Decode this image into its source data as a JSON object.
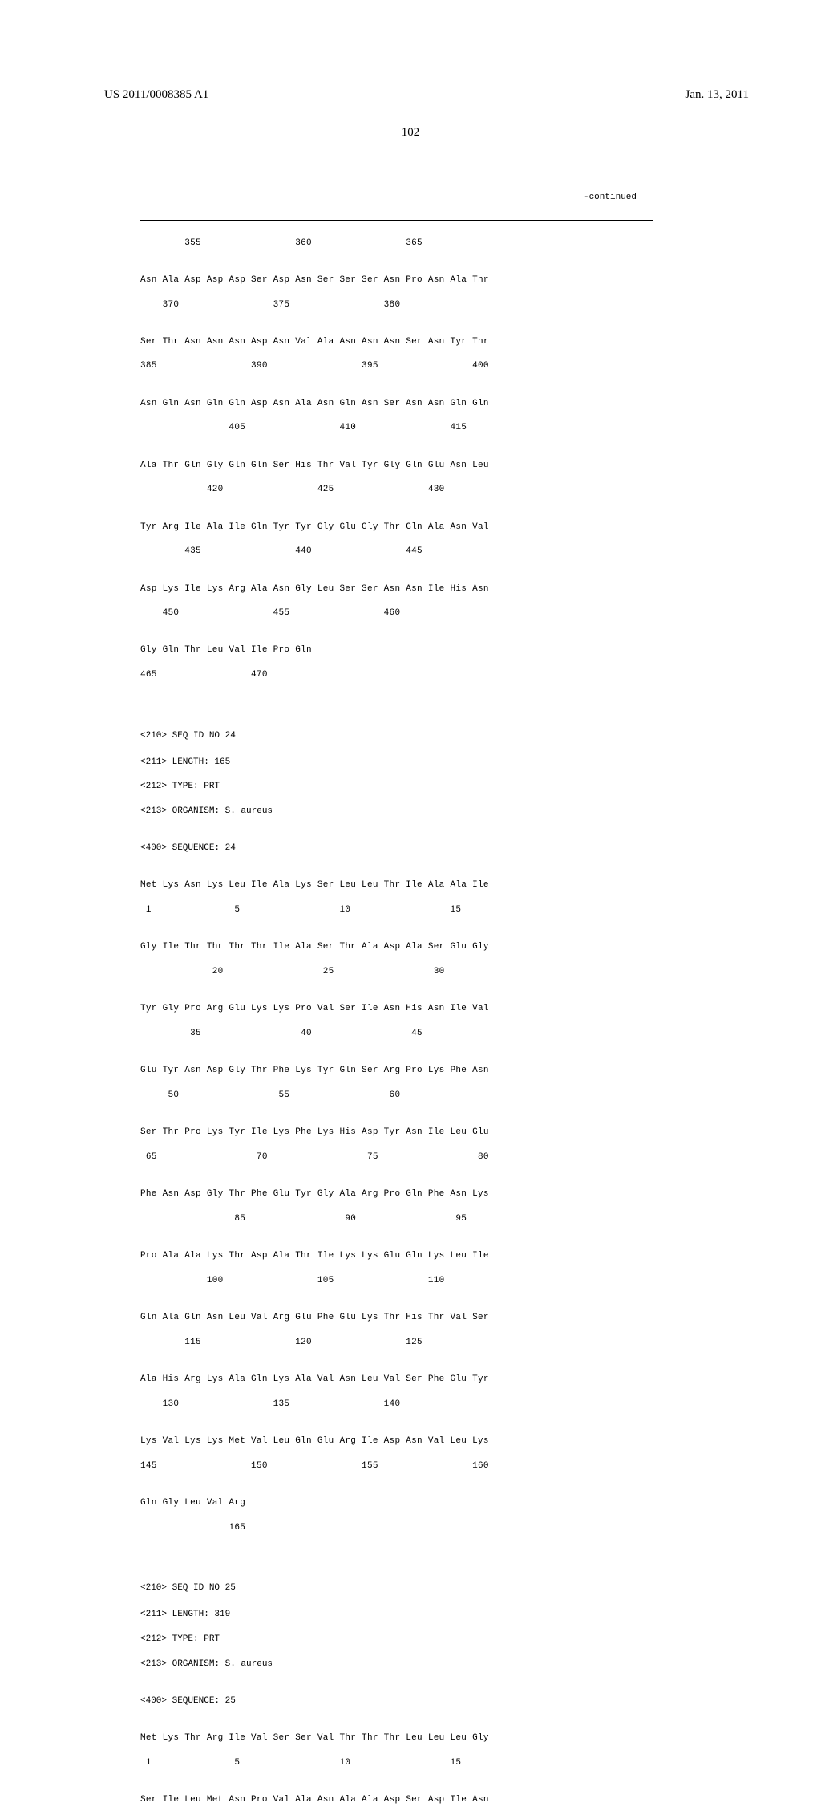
{
  "header": {
    "pub_number": "US 2011/0008385 A1",
    "pub_date": "Jan. 13, 2011"
  },
  "page_number": "102",
  "continued": "-continued",
  "seq1": {
    "rows": [
      {
        "nums": "        355                 360                 365"
      },
      {
        "seq": "Asn Ala Asp Asp Asp Ser Asp Asn Ser Ser Ser Asn Pro Asn Ala Thr",
        "nums": "    370                 375                 380"
      },
      {
        "seq": "Ser Thr Asn Asn Asn Asp Asn Val Ala Asn Asn Asn Ser Asn Tyr Thr",
        "nums": "385                 390                 395                 400"
      },
      {
        "seq": "Asn Gln Asn Gln Gln Asp Asn Ala Asn Gln Asn Ser Asn Asn Gln Gln",
        "nums": "                405                 410                 415"
      },
      {
        "seq": "Ala Thr Gln Gly Gln Gln Ser His Thr Val Tyr Gly Gln Glu Asn Leu",
        "nums": "            420                 425                 430"
      },
      {
        "seq": "Tyr Arg Ile Ala Ile Gln Tyr Tyr Gly Glu Gly Thr Gln Ala Asn Val",
        "nums": "        435                 440                 445"
      },
      {
        "seq": "Asp Lys Ile Lys Arg Ala Asn Gly Leu Ser Ser Asn Asn Ile His Asn",
        "nums": "    450                 455                 460"
      },
      {
        "seq": "Gly Gln Thr Leu Val Ile Pro Gln",
        "nums": "465                 470"
      }
    ]
  },
  "seq24_meta": {
    "line1": "<210> SEQ ID NO 24",
    "line2": "<211> LENGTH: 165",
    "line3": "<212> TYPE: PRT",
    "line4": "<213> ORGANISM: S. aureus",
    "line5": "<400> SEQUENCE: 24"
  },
  "seq24": {
    "rows": [
      {
        "seq": "Met Lys Asn Lys Leu Ile Ala Lys Ser Leu Leu Thr Ile Ala Ala Ile",
        "nums": " 1               5                  10                  15"
      },
      {
        "seq": "Gly Ile Thr Thr Thr Thr Ile Ala Ser Thr Ala Asp Ala Ser Glu Gly",
        "nums": "             20                  25                  30"
      },
      {
        "seq": "Tyr Gly Pro Arg Glu Lys Lys Pro Val Ser Ile Asn His Asn Ile Val",
        "nums": "         35                  40                  45"
      },
      {
        "seq": "Glu Tyr Asn Asp Gly Thr Phe Lys Tyr Gln Ser Arg Pro Lys Phe Asn",
        "nums": "     50                  55                  60"
      },
      {
        "seq": "Ser Thr Pro Lys Tyr Ile Lys Phe Lys His Asp Tyr Asn Ile Leu Glu",
        "nums": " 65                  70                  75                  80"
      },
      {
        "seq": "Phe Asn Asp Gly Thr Phe Glu Tyr Gly Ala Arg Pro Gln Phe Asn Lys",
        "nums": "                 85                  90                  95"
      },
      {
        "seq": "Pro Ala Ala Lys Thr Asp Ala Thr Ile Lys Lys Glu Gln Lys Leu Ile",
        "nums": "            100                 105                 110"
      },
      {
        "seq": "Gln Ala Gln Asn Leu Val Arg Glu Phe Glu Lys Thr His Thr Val Ser",
        "nums": "        115                 120                 125"
      },
      {
        "seq": "Ala His Arg Lys Ala Gln Lys Ala Val Asn Leu Val Ser Phe Glu Tyr",
        "nums": "    130                 135                 140"
      },
      {
        "seq": "Lys Val Lys Lys Met Val Leu Gln Glu Arg Ile Asp Asn Val Leu Lys",
        "nums": "145                 150                 155                 160"
      },
      {
        "seq": "Gln Gly Leu Val Arg",
        "nums": "                165"
      }
    ]
  },
  "seq25_meta": {
    "line1": "<210> SEQ ID NO 25",
    "line2": "<211> LENGTH: 319",
    "line3": "<212> TYPE: PRT",
    "line4": "<213> ORGANISM: S. aureus",
    "line5": "<400> SEQUENCE: 25"
  },
  "seq25": {
    "rows": [
      {
        "seq": "Met Lys Thr Arg Ile Val Ser Ser Val Thr Thr Thr Leu Leu Leu Gly",
        "nums": " 1               5                  10                  15"
      },
      {
        "seq": "Ser Ile Leu Met Asn Pro Val Ala Asn Ala Ala Asp Ser Asp Ile Asn",
        "nums": ""
      }
    ]
  }
}
